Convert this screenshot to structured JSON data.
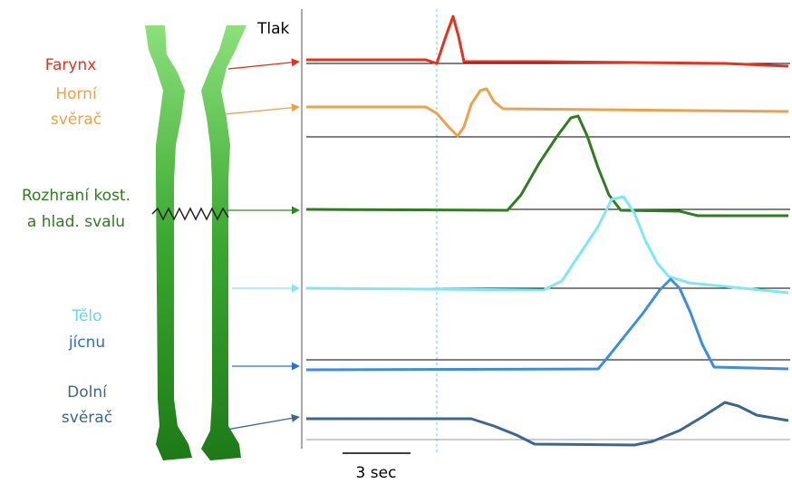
{
  "axis_label": "Tlak",
  "scale_label": "3 sec",
  "labels": [
    {
      "lines": [
        "Farynx"
      ]
    },
    {
      "lines": [
        "Horní",
        "svěrač"
      ]
    },
    {
      "lines": [
        "Rozhraní kost.",
        "a hlad. svalu"
      ]
    },
    {
      "lines": [
        "Tělo",
        "jícnu"
      ]
    },
    {
      "lines": [
        "Dolní",
        "svěrač"
      ]
    }
  ]
}
